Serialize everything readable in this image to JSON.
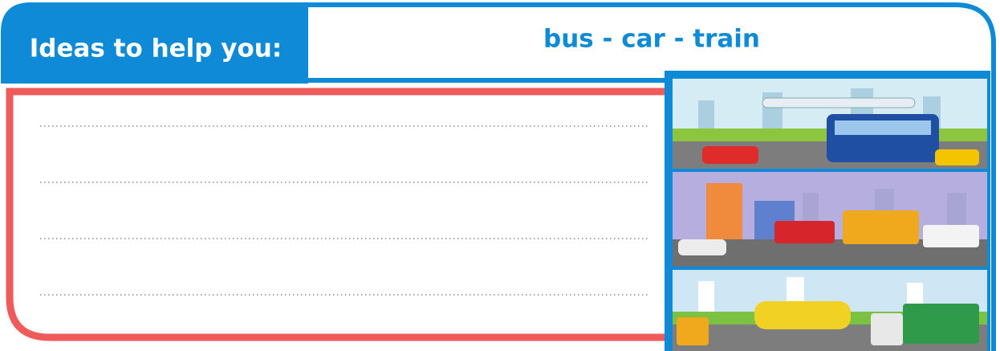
{
  "header": {
    "title": "Ideas to help you:",
    "words": "bus - car - train"
  }
}
